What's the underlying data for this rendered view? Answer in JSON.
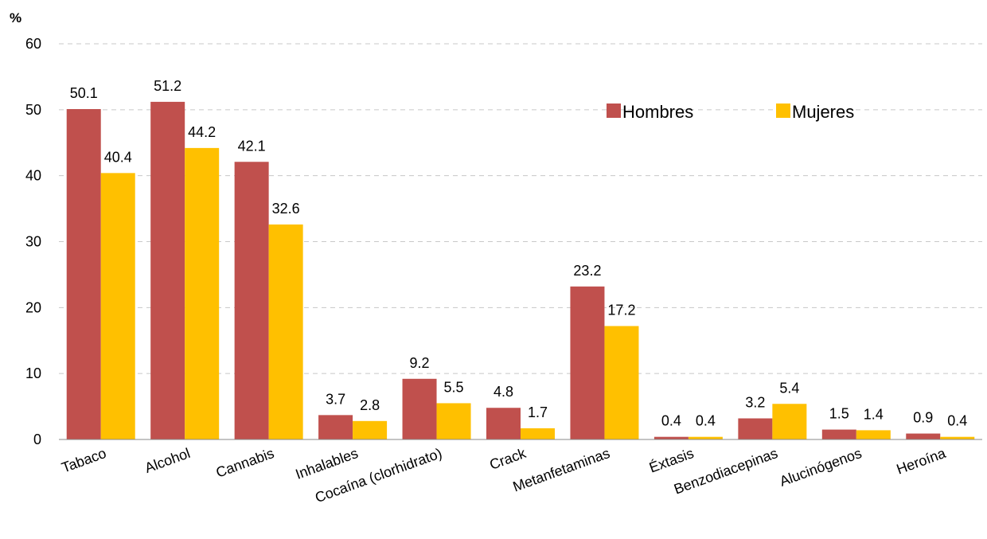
{
  "chart_data": {
    "type": "bar",
    "unit_label": "%",
    "categories": [
      "Tabaco",
      "Alcohol",
      "Cannabis",
      "Inhalables",
      "Cocaína (clorhidrato)",
      "Crack",
      "Metanfetaminas",
      "Éxtasis",
      "Benzodiacepinas",
      "Alucinógenos",
      "Heroína"
    ],
    "series": [
      {
        "name": "Hombres",
        "color": "#C0504D",
        "values": [
          50.1,
          51.2,
          42.1,
          3.7,
          9.2,
          4.8,
          23.2,
          0.4,
          3.2,
          1.5,
          0.9
        ]
      },
      {
        "name": "Mujeres",
        "color": "#FFC000",
        "values": [
          40.4,
          44.2,
          32.6,
          2.8,
          5.5,
          1.7,
          17.2,
          0.4,
          5.4,
          1.4,
          0.4
        ]
      }
    ],
    "ylim": [
      0,
      60
    ],
    "yticks": [
      0,
      10,
      20,
      30,
      40,
      50,
      60
    ],
    "grid": true,
    "legend_position": "top-right"
  }
}
